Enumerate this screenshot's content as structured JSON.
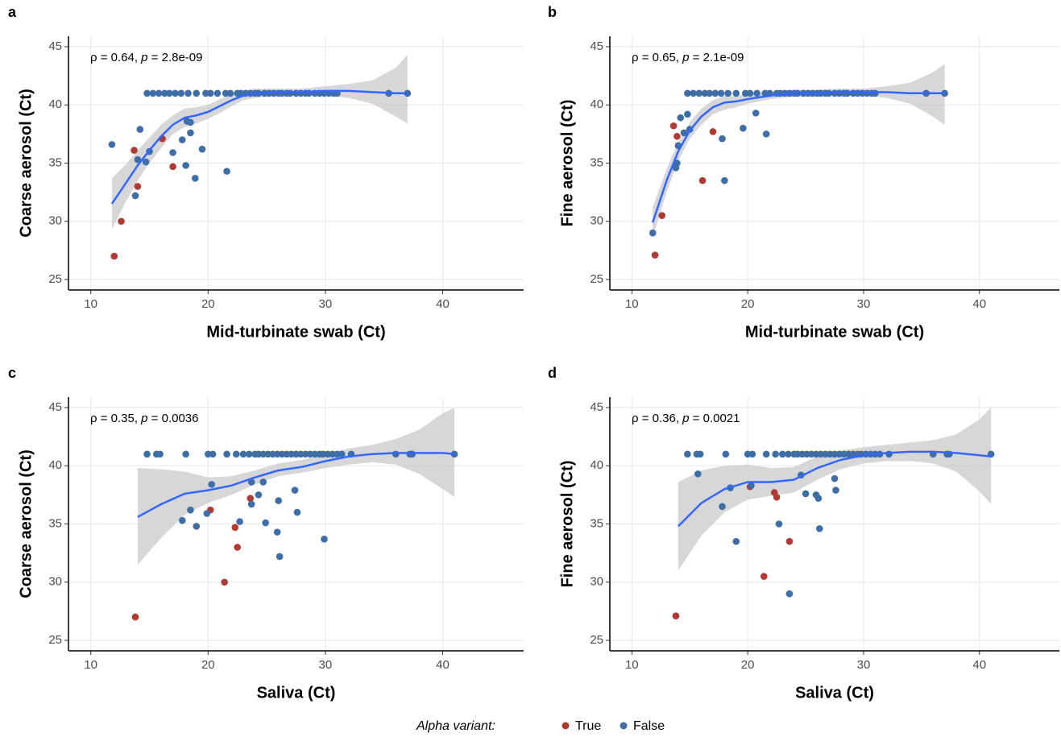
{
  "legend": {
    "title": "Alpha variant:"
  },
  "chart_data": [
    {
      "type": "scatter",
      "panel": "a",
      "annotation": [
        "ρ = 0.64, ",
        "p",
        " = 2.8e-09"
      ],
      "x_label": "Mid-turbinate swab (Ct)",
      "y_label": "Coarse aerosol (Ct)",
      "xlim": [
        8.1,
        46.9
      ],
      "ylim": [
        24.1,
        45.9
      ],
      "xticks": [
        10,
        20,
        30,
        40
      ],
      "yticks": [
        25,
        30,
        35,
        40,
        45
      ],
      "grid": true,
      "series": [
        {
          "name": "True",
          "color": "#b03a32",
          "x": [
            12,
            12.6,
            13.7,
            14,
            16.1,
            17
          ],
          "y": [
            27,
            30,
            36.1,
            33,
            37.1,
            34.7
          ]
        },
        {
          "name": "False",
          "color": "#3d6ea8",
          "x": [
            11.8,
            13.8,
            14,
            14.2,
            14.7,
            15,
            17,
            17.8,
            18.1,
            18.2,
            18.5,
            18.5,
            18.9,
            19.5,
            21.6,
            14.8,
            15.3,
            15.8,
            16.3,
            16.7,
            17.2,
            17.7,
            18.3,
            19,
            19.8,
            20.2,
            20.8,
            21.5,
            21.9,
            22.5,
            22.8,
            23.2,
            23.6,
            24,
            24.3,
            24.8,
            25.2,
            25.6,
            26,
            26.3,
            26.7,
            27,
            27.5,
            27.9,
            28.3,
            28.6,
            29.1,
            29.5,
            29.9,
            30.3,
            30.7,
            31,
            35.4,
            37
          ],
          "y": [
            36.6,
            32.2,
            35.3,
            37.9,
            35.1,
            36,
            35.9,
            37,
            34.8,
            38.6,
            37.6,
            38.5,
            33.7,
            36.2,
            34.3,
            41,
            41,
            41,
            41,
            41,
            41,
            41,
            41,
            41,
            41,
            41,
            41,
            41,
            41,
            41,
            41,
            41,
            41,
            41,
            41,
            41,
            41,
            41,
            41,
            41,
            41,
            41,
            41,
            41,
            41,
            41,
            41,
            41,
            41,
            41,
            41,
            41,
            41,
            41
          ]
        }
      ],
      "smooth": {
        "color": "#3366ff",
        "band_color": "#d0d0d0",
        "x": [
          11.8,
          13,
          14,
          15,
          16,
          17,
          18,
          19,
          20,
          21,
          22,
          23,
          24,
          26,
          28,
          30,
          32,
          34,
          36,
          37
        ],
        "y": [
          31.5,
          33.3,
          34.8,
          36.1,
          37.3,
          38.3,
          38.9,
          39.1,
          39.4,
          39.9,
          40.4,
          40.8,
          41,
          41.1,
          41.1,
          41.2,
          41.2,
          41.1,
          41,
          41
        ],
        "lower": [
          29.3,
          31.7,
          33.5,
          35,
          36.3,
          37.5,
          38.1,
          38.4,
          38.8,
          39.3,
          39.9,
          40.4,
          40.6,
          40.8,
          40.8,
          40.8,
          40.6,
          40.1,
          39,
          38.4
        ],
        "upper": [
          33.7,
          34.9,
          36.1,
          37.2,
          38.3,
          39.1,
          39.7,
          39.8,
          40,
          40.5,
          40.9,
          41.2,
          41.4,
          41.4,
          41.4,
          41.6,
          41.8,
          42.1,
          43.2,
          44.3
        ]
      }
    },
    {
      "type": "scatter",
      "panel": "b",
      "annotation": [
        "ρ = 0.65, ",
        "p",
        " = 2.1e-09"
      ],
      "x_label": "Mid-turbinate swab (Ct)",
      "y_label": "Fine aerosol (Ct)",
      "xlim": [
        8.1,
        46.9
      ],
      "ylim": [
        24.1,
        45.9
      ],
      "xticks": [
        10,
        20,
        30,
        40
      ],
      "yticks": [
        25,
        30,
        35,
        40,
        45
      ],
      "grid": true,
      "series": [
        {
          "name": "True",
          "color": "#b03a32",
          "x": [
            12,
            12.6,
            13.6,
            13.9,
            16.1,
            17
          ],
          "y": [
            27.1,
            30.5,
            38.2,
            37.3,
            33.5,
            37.7
          ]
        },
        {
          "name": "False",
          "color": "#3d6ea8",
          "x": [
            11.8,
            13.8,
            13.9,
            14,
            14.2,
            14.5,
            14.8,
            15,
            17.8,
            18,
            19.6,
            20.7,
            21.6,
            14.8,
            15.3,
            15.8,
            16.3,
            16.7,
            17.2,
            17.7,
            18.3,
            19,
            19.8,
            20.2,
            20.8,
            21.5,
            21.9,
            22.5,
            22.8,
            23.2,
            23.6,
            24,
            24.3,
            24.8,
            25.2,
            25.6,
            26,
            26.3,
            26.7,
            27,
            27.5,
            27.9,
            28.3,
            28.6,
            29.1,
            29.5,
            29.9,
            30.3,
            30.7,
            31,
            35.4,
            37
          ],
          "y": [
            29,
            34.6,
            35,
            36.5,
            38.9,
            37.6,
            39.2,
            37.9,
            37.1,
            33.5,
            38,
            39.3,
            37.5,
            41,
            41,
            41,
            41,
            41,
            41,
            41,
            41,
            41,
            41,
            41,
            41,
            41,
            41,
            41,
            41,
            41,
            41,
            41,
            41,
            41,
            41,
            41,
            41,
            41,
            41,
            41,
            41,
            41,
            41,
            41,
            41,
            41,
            41,
            41,
            41,
            41,
            41,
            41
          ]
        }
      ],
      "smooth": {
        "color": "#3366ff",
        "band_color": "#d0d0d0",
        "x": [
          11.8,
          13,
          14,
          15,
          16,
          17,
          18,
          19,
          20,
          22,
          24,
          26,
          28,
          30,
          32,
          34,
          36,
          37
        ],
        "y": [
          29.9,
          33.5,
          36,
          37.8,
          39,
          39.8,
          40.2,
          40.3,
          40.5,
          40.8,
          41,
          41,
          41.1,
          41.1,
          41.1,
          41,
          41,
          41
        ],
        "lower": [
          28.6,
          32.5,
          35.2,
          37.1,
          38.3,
          39.2,
          39.6,
          39.8,
          40.1,
          40.5,
          40.7,
          40.7,
          40.8,
          40.8,
          40.6,
          40.1,
          39,
          38.3
        ],
        "upper": [
          31.2,
          34.5,
          36.8,
          38.5,
          39.7,
          40.4,
          40.8,
          40.8,
          40.9,
          41.1,
          41.3,
          41.3,
          41.4,
          41.4,
          41.6,
          41.9,
          42.8,
          43.5
        ]
      }
    },
    {
      "type": "scatter",
      "panel": "c",
      "annotation": [
        "ρ = 0.35, ",
        "p",
        " = 0.0036"
      ],
      "x_label": "Saliva (Ct)",
      "y_label": "Coarse aerosol (Ct)",
      "xlim": [
        8.1,
        46.9
      ],
      "ylim": [
        24.1,
        45.9
      ],
      "xticks": [
        10,
        20,
        30,
        40
      ],
      "yticks": [
        25,
        30,
        35,
        40,
        45
      ],
      "grid": true,
      "series": [
        {
          "name": "True",
          "color": "#b03a32",
          "x": [
            13.8,
            20.2,
            21.4,
            22.3,
            22.5,
            23.6
          ],
          "y": [
            27,
            36.2,
            30,
            34.7,
            33,
            37.2
          ]
        },
        {
          "name": "False",
          "color": "#3d6ea8",
          "x": [
            17.8,
            18.5,
            19,
            19.9,
            20.3,
            22.7,
            23.7,
            23.7,
            24.3,
            24.7,
            24.9,
            25.9,
            26,
            26.1,
            27.4,
            27.6,
            29.9,
            14.8,
            15.6,
            15.9,
            18.1,
            20,
            20.4,
            21.6,
            22.4,
            23,
            23.5,
            24,
            24.3,
            24.7,
            25.1,
            25.5,
            25.9,
            26.3,
            26.7,
            27.1,
            27.5,
            27.9,
            28.3,
            28.7,
            29.1,
            29.5,
            29.8,
            30.2,
            30.6,
            31,
            31.4,
            32.2,
            36,
            37.2,
            37.4,
            41
          ],
          "y": [
            35.3,
            36.2,
            34.8,
            35.9,
            38.4,
            35.2,
            36.7,
            38.6,
            37.5,
            38.6,
            35.1,
            34.3,
            37,
            32.2,
            37.9,
            36,
            33.7,
            41,
            41,
            41,
            41,
            41,
            41,
            41,
            41,
            41,
            41,
            41,
            41,
            41,
            41,
            41,
            41,
            41,
            41,
            41,
            41,
            41,
            41,
            41,
            41,
            41,
            41,
            41,
            41,
            41,
            41,
            41,
            41,
            41,
            41,
            41
          ]
        }
      ],
      "smooth": {
        "color": "#3366ff",
        "band_color": "#d0d0d0",
        "x": [
          14,
          16,
          18,
          20,
          22,
          24,
          26,
          28,
          30,
          32,
          34,
          36,
          38,
          40,
          41
        ],
        "y": [
          35.6,
          36.7,
          37.6,
          37.9,
          38.3,
          39,
          39.6,
          39.9,
          40.4,
          40.8,
          41,
          41.1,
          41.1,
          41.1,
          41
        ],
        "lower": [
          31.5,
          33.8,
          35.8,
          36.8,
          37.5,
          38.4,
          39.1,
          39.4,
          39.8,
          40.1,
          40.3,
          40.1,
          39.3,
          38,
          37.3
        ],
        "upper": [
          39.8,
          39.7,
          39.5,
          39,
          39.1,
          39.6,
          40.2,
          40.5,
          41,
          41.5,
          41.8,
          42.3,
          43.1,
          44.5,
          45
        ]
      }
    },
    {
      "type": "scatter",
      "panel": "d",
      "annotation": [
        "ρ = 0.36, ",
        "p",
        " = 0.0021"
      ],
      "x_label": "Saliva (Ct)",
      "y_label": "Fine aerosol (Ct)",
      "xlim": [
        8.1,
        46.9
      ],
      "ylim": [
        24.1,
        45.9
      ],
      "xticks": [
        10,
        20,
        30,
        40
      ],
      "yticks": [
        25,
        30,
        35,
        40,
        45
      ],
      "grid": true,
      "series": [
        {
          "name": "True",
          "color": "#b03a32",
          "x": [
            13.8,
            20.2,
            21.4,
            22.3,
            22.5,
            23.6
          ],
          "y": [
            27.1,
            38.2,
            30.5,
            37.7,
            37.3,
            33.5
          ]
        },
        {
          "name": "False",
          "color": "#3d6ea8",
          "x": [
            15.7,
            17.8,
            18.5,
            19,
            20.3,
            22.7,
            23.6,
            24.6,
            25,
            25.9,
            26.1,
            26.2,
            27.5,
            27.6,
            14.8,
            15.6,
            15.9,
            18.1,
            20,
            20.4,
            21.6,
            22.4,
            23,
            23.5,
            24,
            24.3,
            24.7,
            25.1,
            25.5,
            25.9,
            26.3,
            26.7,
            27.1,
            27.5,
            27.9,
            28.3,
            28.7,
            29.1,
            29.5,
            29.8,
            30.2,
            30.6,
            31,
            31.4,
            32.2,
            36,
            37.2,
            37.4,
            41
          ],
          "y": [
            39.3,
            36.5,
            38.1,
            33.5,
            38.3,
            35,
            29,
            39.2,
            37.6,
            37.5,
            37.2,
            34.6,
            38.9,
            37.9,
            41,
            41,
            41,
            41,
            41,
            41,
            41,
            41,
            41,
            41,
            41,
            41,
            41,
            41,
            41,
            41,
            41,
            41,
            41,
            41,
            41,
            41,
            41,
            41,
            41,
            41,
            41,
            41,
            41,
            41,
            41,
            41,
            41,
            41,
            41
          ]
        }
      ],
      "smooth": {
        "color": "#3366ff",
        "band_color": "#d0d0d0",
        "x": [
          14,
          16,
          18,
          20,
          22,
          24,
          26,
          28,
          30,
          32,
          34,
          36,
          38,
          40,
          41
        ],
        "y": [
          34.8,
          36.8,
          38,
          38.6,
          38.6,
          38.8,
          39.8,
          40.5,
          40.9,
          41.1,
          41.2,
          41.2,
          41.1,
          40.9,
          40.8
        ],
        "lower": [
          31,
          34,
          36,
          37.1,
          37.4,
          37.7,
          38.8,
          39.7,
          40.2,
          40.4,
          40.4,
          40.2,
          39.5,
          37.8,
          36.7
        ],
        "upper": [
          38.6,
          39.6,
          40,
          40.1,
          39.8,
          39.9,
          40.8,
          41.3,
          41.6,
          41.8,
          42,
          42.2,
          42.7,
          44,
          45
        ]
      }
    }
  ]
}
